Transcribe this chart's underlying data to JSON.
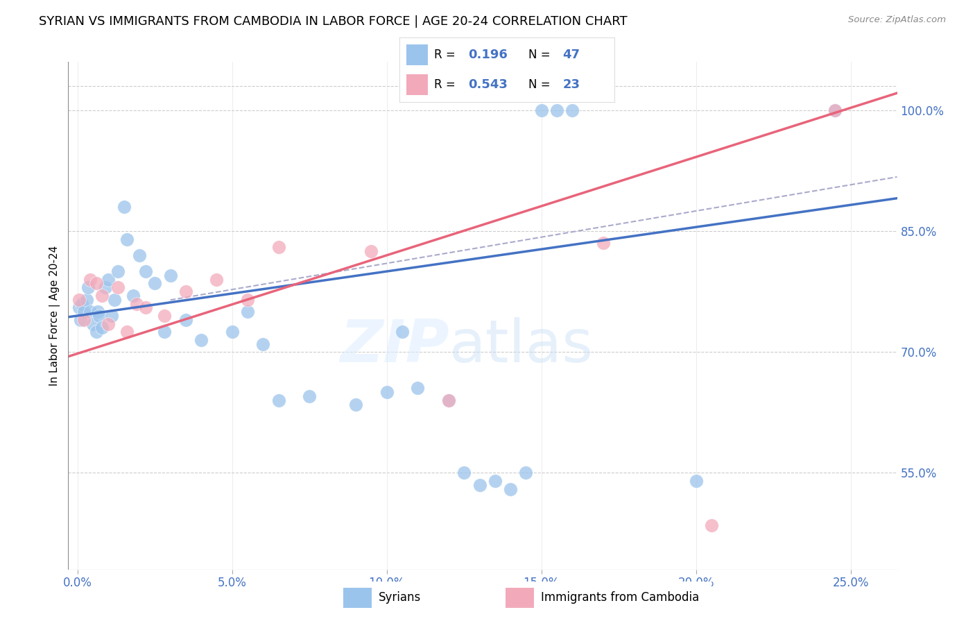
{
  "title": "SYRIAN VS IMMIGRANTS FROM CAMBODIA IN LABOR FORCE | AGE 20-24 CORRELATION CHART",
  "source": "Source: ZipAtlas.com",
  "xlabel_vals": [
    0.0,
    5.0,
    10.0,
    15.0,
    20.0,
    25.0
  ],
  "ylabel_vals": [
    55.0,
    70.0,
    85.0,
    100.0
  ],
  "ymin": 43.0,
  "ymax": 106.0,
  "xmin": -0.3,
  "xmax": 26.5,
  "syrian_x": [
    0.05,
    0.1,
    0.15,
    0.2,
    0.3,
    0.35,
    0.4,
    0.5,
    0.6,
    0.65,
    0.7,
    0.8,
    0.9,
    1.0,
    1.1,
    1.2,
    1.3,
    1.5,
    1.6,
    1.8,
    2.0,
    2.2,
    2.5,
    2.8,
    3.0,
    3.5,
    4.0,
    5.0,
    5.5,
    6.0,
    6.5,
    7.5,
    9.0,
    10.0,
    10.5,
    11.0,
    12.0,
    12.5,
    13.0,
    13.5,
    14.0,
    14.5,
    15.0,
    15.5,
    16.0,
    20.0,
    24.5
  ],
  "syrian_y": [
    75.5,
    74.0,
    76.0,
    75.0,
    76.5,
    78.0,
    75.0,
    73.5,
    72.5,
    75.0,
    74.5,
    73.0,
    78.0,
    79.0,
    74.5,
    76.5,
    80.0,
    88.0,
    84.0,
    77.0,
    82.0,
    80.0,
    78.5,
    72.5,
    79.5,
    74.0,
    71.5,
    72.5,
    75.0,
    71.0,
    64.0,
    64.5,
    63.5,
    65.0,
    72.5,
    65.5,
    64.0,
    55.0,
    53.5,
    54.0,
    53.0,
    55.0,
    100.0,
    100.0,
    100.0,
    54.0,
    100.0
  ],
  "cambodia_x": [
    0.05,
    0.2,
    0.4,
    0.6,
    0.8,
    1.0,
    1.3,
    1.6,
    1.9,
    2.2,
    2.8,
    3.5,
    4.5,
    5.5,
    6.5,
    9.5,
    12.0,
    17.0,
    20.5,
    24.5
  ],
  "cambodia_y": [
    76.5,
    74.0,
    79.0,
    78.5,
    77.0,
    73.5,
    78.0,
    72.5,
    76.0,
    75.5,
    74.5,
    77.5,
    79.0,
    76.5,
    83.0,
    82.5,
    64.0,
    83.5,
    48.5,
    100.0
  ],
  "blue_color": "#9BC4EC",
  "pink_color": "#F2AABB",
  "blue_line_color": "#4472C4",
  "pink_line_color": "#E8647A",
  "gray_dash_color": "#AAAACC",
  "legend_label1": "Syrians",
  "legend_label2": "Immigrants from Cambodia",
  "title_fontsize": 13,
  "axis_label_color": "#4472C4",
  "watermark_zip": "ZIP",
  "watermark_atlas": "atlas",
  "blue_line_slope": 0.55,
  "blue_line_intercept": 74.5,
  "pink_line_slope": 1.22,
  "pink_line_intercept": 69.8,
  "dash_line_slope": 0.65,
  "dash_line_intercept": 74.5
}
